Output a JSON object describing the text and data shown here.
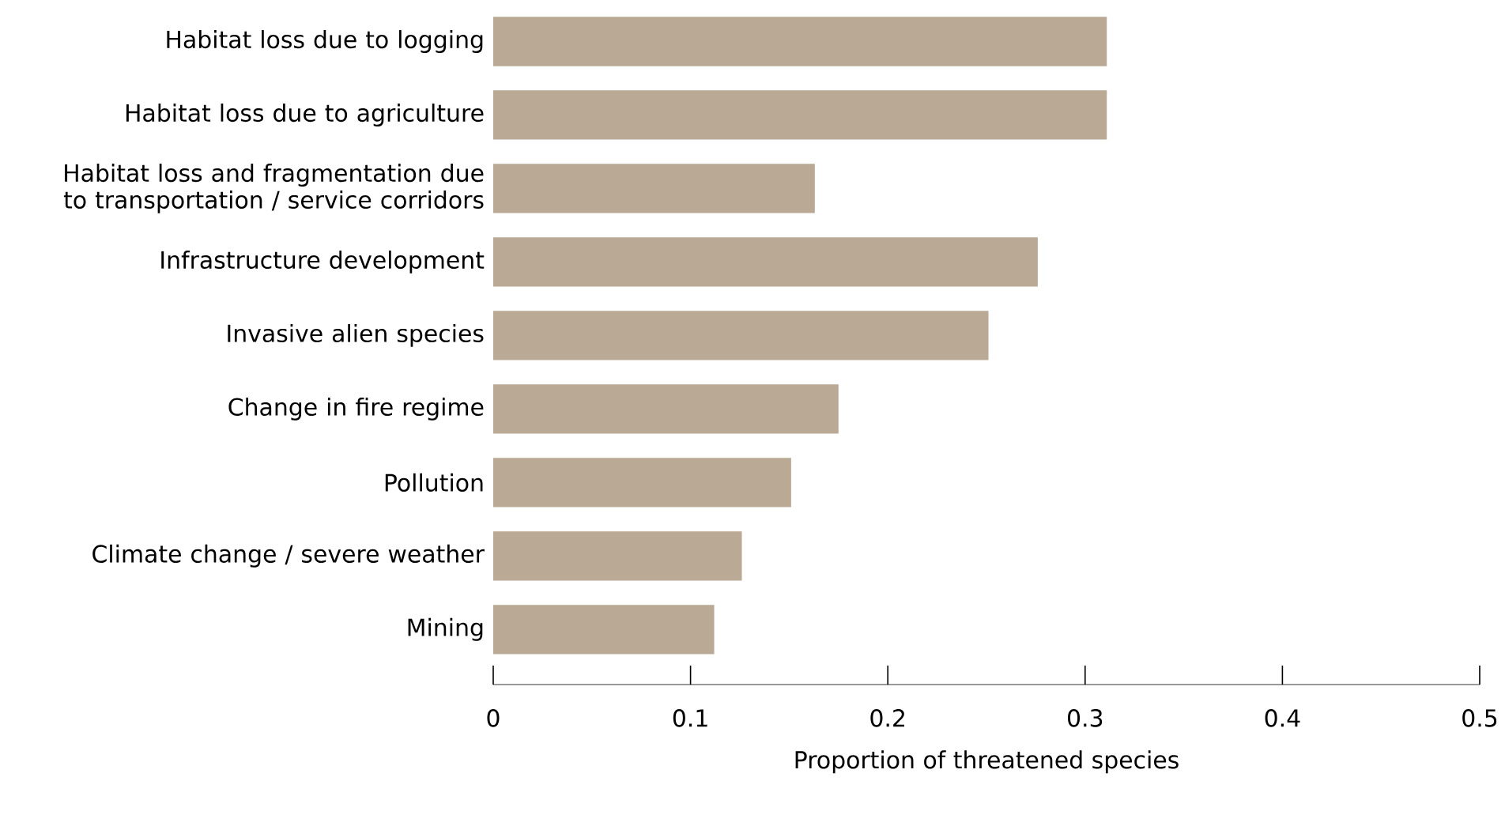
{
  "chart_data": {
    "type": "bar",
    "orientation": "horizontal",
    "xlabel": "Proportion of threatened species",
    "categories": [
      "Habitat loss due to logging",
      "Habitat loss due to agriculture",
      "Habitat loss and fragmentation due to transportation / service corridors",
      "Infrastructure development",
      "Invasive alien species",
      "Change in fire regime",
      "Pollution",
      "Climate change / severe weather",
      "Mining"
    ],
    "values": [
      0.311,
      0.311,
      0.163,
      0.276,
      0.251,
      0.175,
      0.151,
      0.126,
      0.112
    ],
    "color": "#b9a995",
    "xlim": [
      0,
      0.5
    ],
    "xticks": [
      0,
      0.1,
      0.2,
      0.3,
      0.4,
      0.5
    ]
  }
}
